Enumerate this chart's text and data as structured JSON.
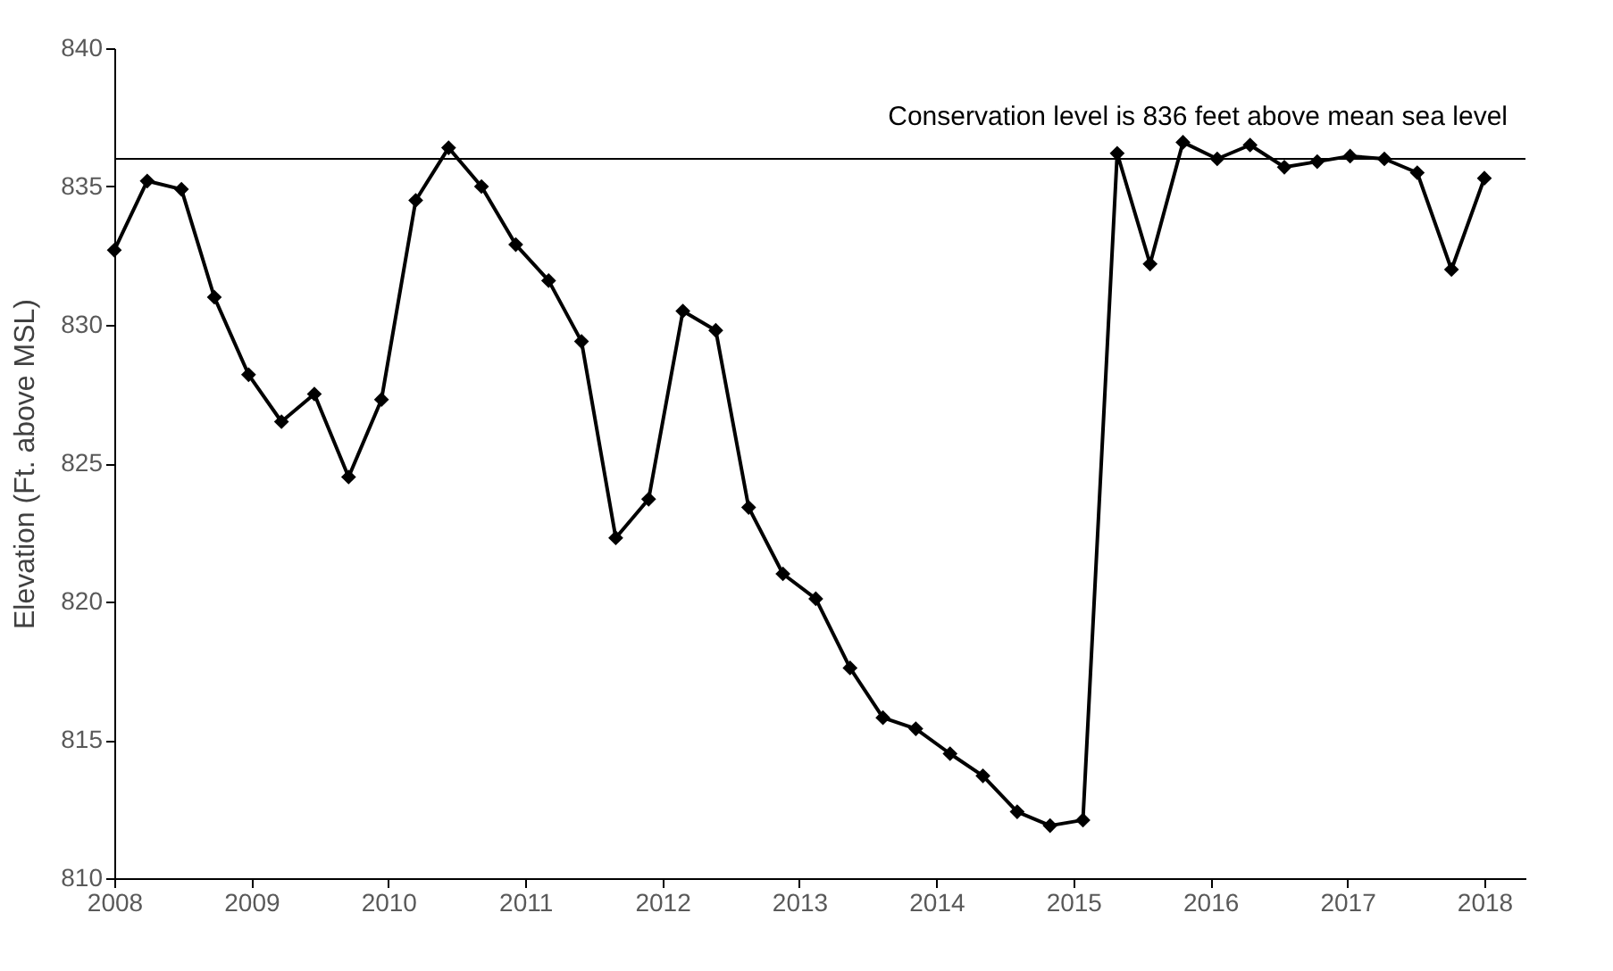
{
  "chart_data": {
    "type": "line",
    "ylabel": "Elevation (Ft. above MSL)",
    "x": [
      2008,
      2008.24,
      2008.49,
      2008.73,
      2008.98,
      2009.22,
      2009.46,
      2009.71,
      2009.95,
      2010.2,
      2010.44,
      2010.68,
      2010.93,
      2011.17,
      2011.41,
      2011.66,
      2011.9,
      2012.15,
      2012.39,
      2012.63,
      2012.88,
      2013.12,
      2013.37,
      2013.61,
      2013.85,
      2014.1,
      2014.34,
      2014.59,
      2014.83,
      2015.07,
      2015.32,
      2015.56,
      2015.8,
      2016.05,
      2016.29,
      2016.54,
      2016.78,
      2017.02,
      2017.27,
      2017.51,
      2017.76,
      2018
    ],
    "series": [
      {
        "color": "#000000",
        "values": [
          832.7,
          835.2,
          834.9,
          831,
          828.2,
          826.5,
          827.5,
          824.5,
          827.3,
          834.5,
          836.4,
          835,
          832.9,
          831.6,
          829.4,
          822.3,
          823.7,
          830.5,
          829.8,
          823.4,
          821,
          820.1,
          817.6,
          815.8,
          815.4,
          814.5,
          813.7,
          812.4,
          811.9,
          812.1,
          836.2,
          832.2,
          836.6,
          836,
          836.5,
          835.7,
          835.9,
          836.1,
          836,
          835.5,
          832,
          835.3
        ]
      }
    ],
    "xlim": [
      2008,
      2018.3
    ],
    "xticks": [
      2008,
      2009,
      2010,
      2011,
      2012,
      2013,
      2014,
      2015,
      2016,
      2017,
      2018
    ],
    "ylim": [
      810,
      840
    ],
    "yticks": [
      810,
      815,
      820,
      825,
      830,
      835,
      840
    ],
    "ref_lines": [
      {
        "axis": "y",
        "value": 836,
        "label": "Conservation level is 836 feet above mean sea level",
        "color": "#000000"
      }
    ],
    "grid": false,
    "marker": "diamond",
    "line_style": "solid"
  }
}
